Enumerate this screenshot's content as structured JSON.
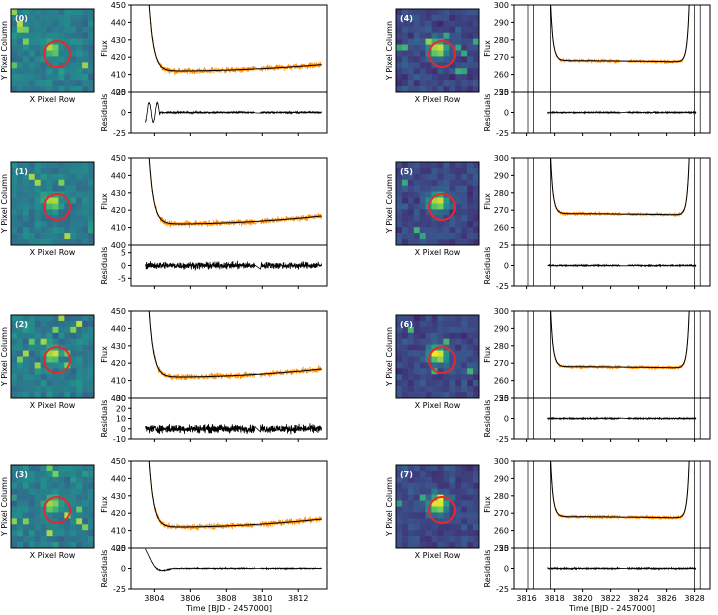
{
  "figure": {
    "pixel_xlabel": "X Pixel Row",
    "pixel_ylabel": "Y Pixel Column",
    "flux_ylabel": "Flux",
    "residuals_ylabel": "Residuals",
    "time_xlabel": "Time [BJD - 2457000]"
  },
  "chart_data": [
    {
      "type": "line",
      "title": "(0)",
      "sector": "left",
      "show_xticks": false,
      "flux": {
        "ylim": [
          400,
          450
        ],
        "yticks": [
          400,
          410,
          420,
          430,
          440,
          450
        ],
        "baseline": 412,
        "end": 416,
        "spread": 2.5,
        "ramp_start": 3803.6,
        "ramp_top": 450
      },
      "residuals": {
        "ylim": [
          -25,
          25
        ],
        "yticks": [
          -25,
          0,
          25
        ],
        "spread": 1.5
      },
      "xlim": [
        3802.7,
        3813.6
      ],
      "xticks": [
        3804,
        3806,
        3808,
        3810,
        3812
      ]
    },
    {
      "type": "line",
      "title": "(1)",
      "sector": "left",
      "show_xticks": false,
      "flux": {
        "ylim": [
          400,
          450
        ],
        "yticks": [
          400,
          410,
          420,
          430,
          440,
          450
        ],
        "baseline": 412,
        "end": 417,
        "spread": 2.5,
        "ramp_start": 3803.6,
        "ramp_top": 450
      },
      "residuals": {
        "ylim": [
          -8,
          8
        ],
        "yticks": [
          -5,
          0,
          5
        ],
        "spread": 2
      },
      "xlim": [
        3802.7,
        3813.6
      ],
      "xticks": [
        3804,
        3806,
        3808,
        3810,
        3812
      ]
    },
    {
      "type": "line",
      "title": "(2)",
      "sector": "left",
      "show_xticks": false,
      "flux": {
        "ylim": [
          400,
          450
        ],
        "yticks": [
          400,
          410,
          420,
          430,
          440,
          450
        ],
        "baseline": 412,
        "end": 417,
        "spread": 2.5,
        "ramp_start": 3803.6,
        "ramp_top": 450
      },
      "residuals": {
        "ylim": [
          -10,
          30
        ],
        "yticks": [
          -10,
          0,
          10,
          20,
          30
        ],
        "spread": 6
      },
      "xlim": [
        3802.7,
        3813.6
      ],
      "xticks": [
        3804,
        3806,
        3808,
        3810,
        3812
      ]
    },
    {
      "type": "line",
      "title": "(3)",
      "sector": "left",
      "show_xticks": true,
      "flux": {
        "ylim": [
          400,
          450
        ],
        "yticks": [
          400,
          410,
          420,
          430,
          440,
          450
        ],
        "baseline": 412,
        "end": 417,
        "spread": 2.5,
        "ramp_start": 3803.6,
        "ramp_top": 450
      },
      "residuals": {
        "ylim": [
          -25,
          25
        ],
        "yticks": [
          -25,
          0,
          25
        ],
        "spread": 0.8
      },
      "xlim": [
        3802.7,
        3813.6
      ],
      "xticks": [
        3804,
        3806,
        3808,
        3810,
        3812
      ]
    },
    {
      "type": "line",
      "title": "(4)",
      "sector": "right",
      "show_xticks": false,
      "flux": {
        "ylim": [
          250,
          300
        ],
        "yticks": [
          250,
          260,
          270,
          280,
          290,
          300
        ],
        "baseline": 268,
        "end": 267,
        "spread": 1.5,
        "ramp_start": 3817.6,
        "ramp_top": 300
      },
      "residuals": {
        "ylim": [
          -25,
          25
        ],
        "yticks": [
          -25,
          0,
          25
        ],
        "spread": 1
      },
      "xlim": [
        3815.1,
        3829.1
      ],
      "xticks": [
        3816,
        3818,
        3820,
        3822,
        3824,
        3826,
        3828
      ]
    },
    {
      "type": "line",
      "title": "(5)",
      "sector": "right",
      "show_xticks": false,
      "flux": {
        "ylim": [
          250,
          300
        ],
        "yticks": [
          260,
          270,
          280,
          290,
          300
        ],
        "baseline": 268,
        "end": 267,
        "spread": 1.5,
        "ramp_start": 3817.6,
        "ramp_top": 300
      },
      "residuals": {
        "ylim": [
          -25,
          25
        ],
        "yticks": [
          -25,
          0,
          25
        ],
        "spread": 1
      },
      "xlim": [
        3815.1,
        3829.1
      ],
      "xticks": [
        3816,
        3818,
        3820,
        3822,
        3824,
        3826,
        3828
      ]
    },
    {
      "type": "line",
      "title": "(6)",
      "sector": "right",
      "show_xticks": false,
      "flux": {
        "ylim": [
          250,
          300
        ],
        "yticks": [
          250,
          260,
          270,
          280,
          290,
          300
        ],
        "baseline": 268,
        "end": 267,
        "spread": 1.5,
        "ramp_start": 3817.6,
        "ramp_top": 300
      },
      "residuals": {
        "ylim": [
          -25,
          25
        ],
        "yticks": [
          -25,
          0,
          25
        ],
        "spread": 1
      },
      "xlim": [
        3815.1,
        3829.1
      ],
      "xticks": [
        3816,
        3818,
        3820,
        3822,
        3824,
        3826,
        3828
      ]
    },
    {
      "type": "line",
      "title": "(7)",
      "sector": "right",
      "show_xticks": true,
      "flux": {
        "ylim": [
          250,
          300
        ],
        "yticks": [
          250,
          260,
          270,
          280,
          290,
          300
        ],
        "baseline": 268,
        "end": 267,
        "spread": 1.5,
        "ramp_start": 3817.6,
        "ramp_top": 300
      },
      "residuals": {
        "ylim": [
          -25,
          25
        ],
        "yticks": [
          -25,
          0,
          25
        ],
        "spread": 1
      },
      "xlim": [
        3815.1,
        3829.1
      ],
      "xticks": [
        3816,
        3818,
        3820,
        3822,
        3824,
        3826,
        3828
      ]
    }
  ],
  "colors": {
    "data": "#ff8c00",
    "model": "#000000",
    "aperture": "#e8282a",
    "image_low": "#3b1a77",
    "image_mid": "#21908d",
    "image_high": "#fde725"
  }
}
